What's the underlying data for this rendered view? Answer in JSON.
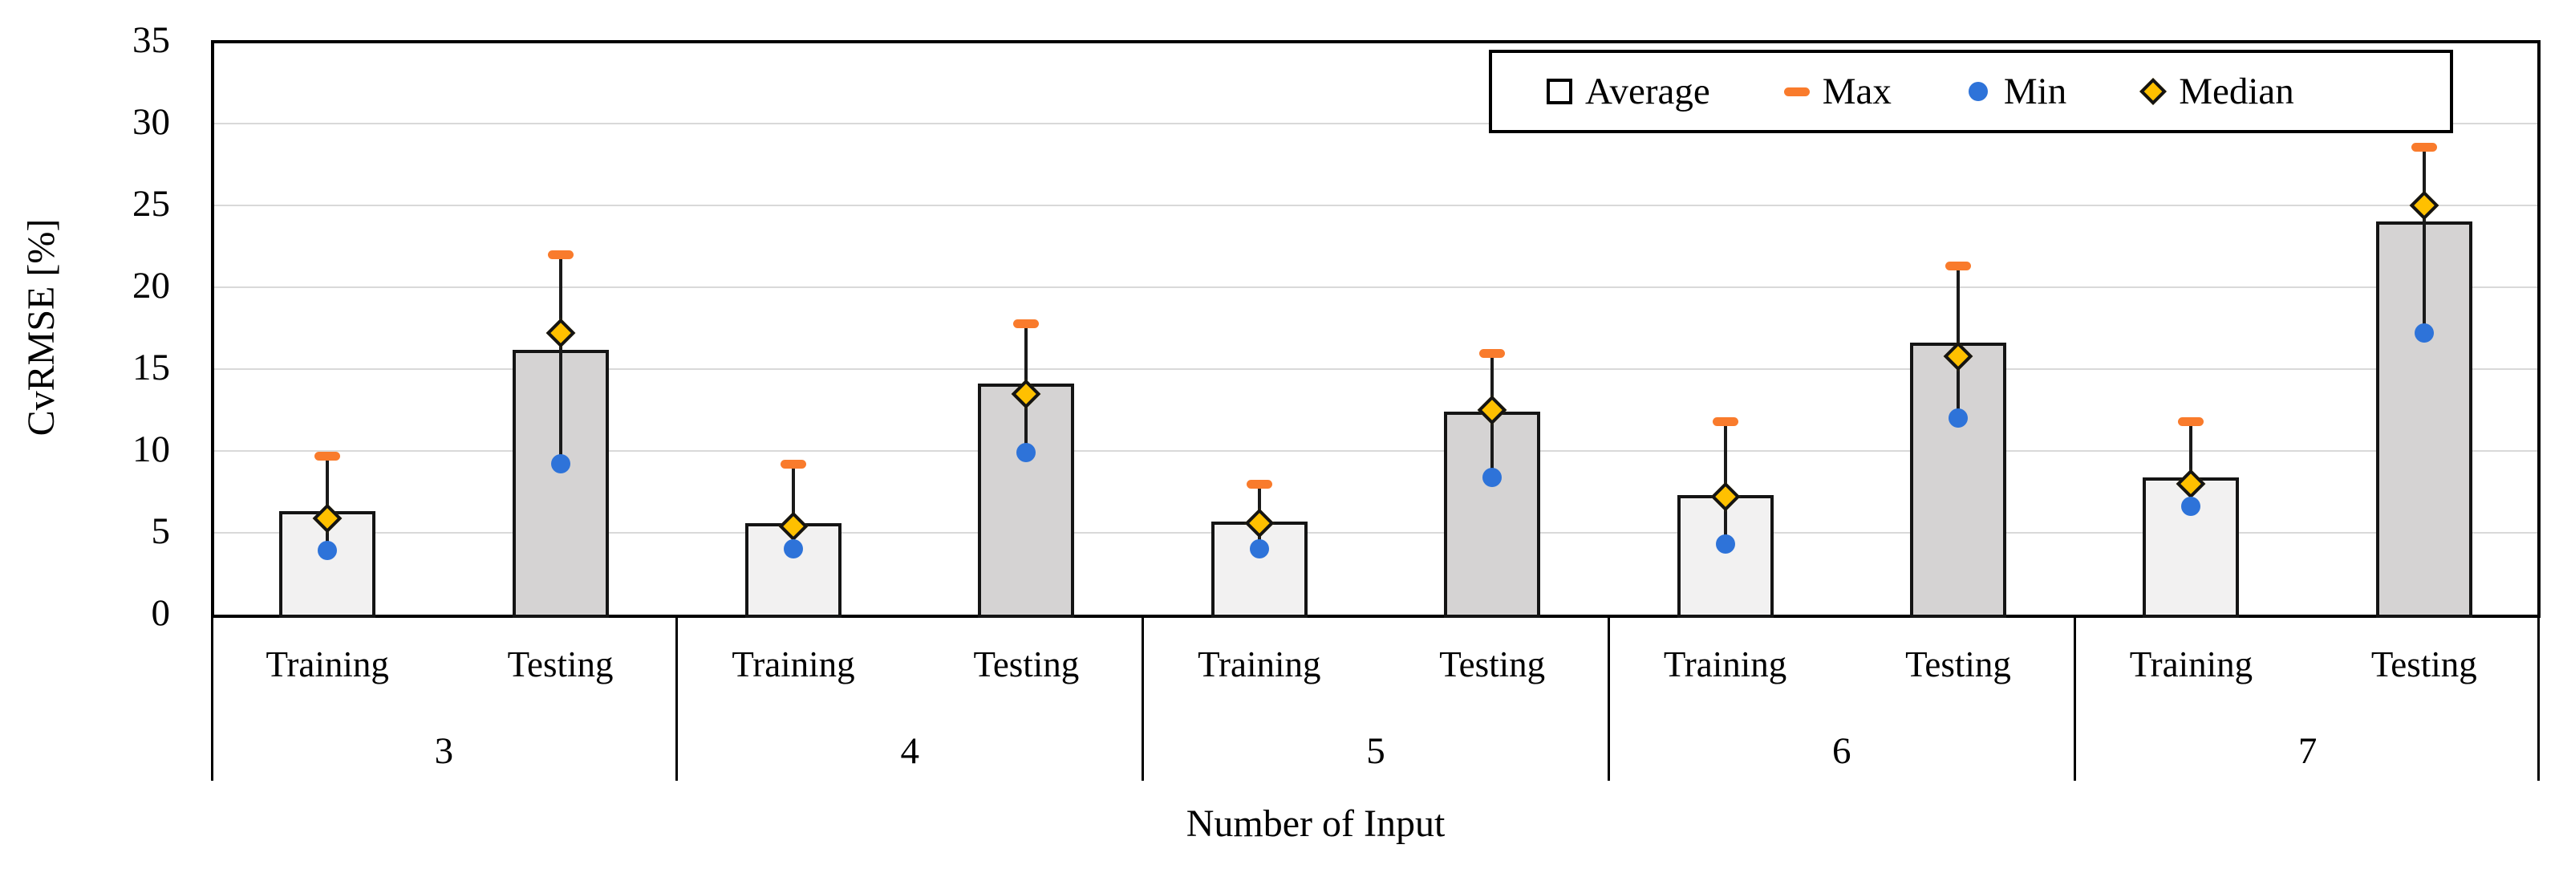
{
  "chart_data": {
    "type": "bar",
    "title": "",
    "xlabel": "Number of Input",
    "ylabel": "CvRMSE [%]",
    "ylim": [
      0,
      35
    ],
    "ytick_step": 5,
    "yticks": [
      0,
      5,
      10,
      15,
      20,
      25,
      30,
      35
    ],
    "grid": true,
    "legend_position": "top-right-inside",
    "legend": [
      {
        "label": "Average",
        "marker": "hollow-square"
      },
      {
        "label": "Max",
        "marker": "orange-dash"
      },
      {
        "label": "Min",
        "marker": "blue-dot"
      },
      {
        "label": "Median",
        "marker": "gold-diamond"
      }
    ],
    "subcategories": [
      "Training",
      "Testing"
    ],
    "groups": [
      {
        "group": "3",
        "bars": [
          {
            "subcategory": "Training",
            "average": 6.3,
            "max": 9.7,
            "min": 3.9,
            "median": 5.9
          },
          {
            "subcategory": "Testing",
            "average": 16.2,
            "max": 22.0,
            "min": 9.2,
            "median": 17.2
          }
        ]
      },
      {
        "group": "4",
        "bars": [
          {
            "subcategory": "Training",
            "average": 5.6,
            "max": 9.2,
            "min": 4.0,
            "median": 5.4
          },
          {
            "subcategory": "Testing",
            "average": 14.1,
            "max": 17.8,
            "min": 9.9,
            "median": 13.5
          }
        ]
      },
      {
        "group": "5",
        "bars": [
          {
            "subcategory": "Training",
            "average": 5.7,
            "max": 8.0,
            "min": 4.0,
            "median": 5.6
          },
          {
            "subcategory": "Testing",
            "average": 12.4,
            "max": 16.0,
            "min": 8.4,
            "median": 12.5
          }
        ]
      },
      {
        "group": "6",
        "bars": [
          {
            "subcategory": "Training",
            "average": 7.3,
            "max": 11.8,
            "min": 4.3,
            "median": 7.2
          },
          {
            "subcategory": "Testing",
            "average": 16.6,
            "max": 21.3,
            "min": 12.0,
            "median": 15.8
          }
        ]
      },
      {
        "group": "7",
        "bars": [
          {
            "subcategory": "Training",
            "average": 8.4,
            "max": 11.8,
            "min": 6.6,
            "median": 8.0
          },
          {
            "subcategory": "Testing",
            "average": 24.0,
            "max": 28.6,
            "min": 17.2,
            "median": 25.0
          }
        ]
      }
    ],
    "colors": {
      "training_fill": "#F2F1F1",
      "testing_fill": "#D5D3D3",
      "bar_border": "#141414",
      "max_marker": "#F97B2C",
      "min_marker": "#2E73D9",
      "median_fill": "#FFC000",
      "median_border": "#141414",
      "gridline": "#D9D9D9",
      "axis": "#000000",
      "text": "#000000"
    }
  }
}
